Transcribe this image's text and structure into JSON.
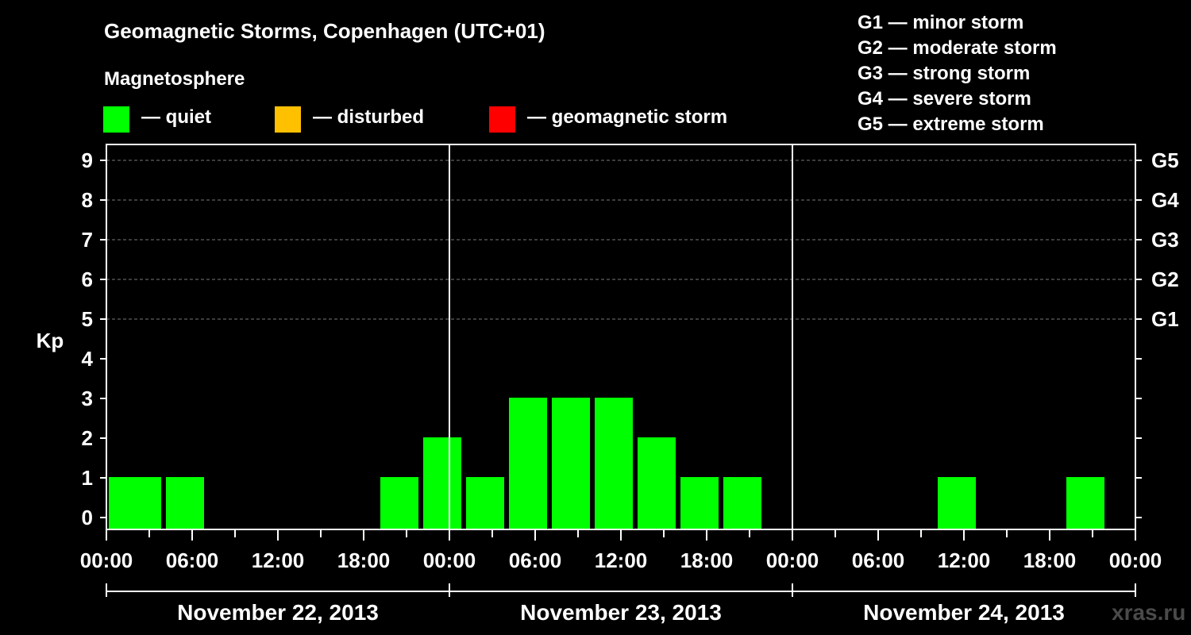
{
  "header": {
    "title": "Geomagnetic Storms, Copenhagen (UTC+01)",
    "subtitle": "Magnetosphere"
  },
  "legend": [
    {
      "label": "— quiet",
      "color": "#00ff00"
    },
    {
      "label": "— disturbed",
      "color": "#ffc000"
    },
    {
      "label": "— geomagnetic storm",
      "color": "#ff0000"
    }
  ],
  "storm_levels": [
    "G1 — minor storm",
    "G2 — moderate storm",
    "G3 — strong storm",
    "G4 — severe storm",
    "G5 — extreme storm"
  ],
  "watermark": "xras.ru",
  "chart_data": {
    "type": "bar",
    "ylabel": "Kp",
    "ylim": [
      0,
      9
    ],
    "y_ticks": [
      "0",
      "1",
      "2",
      "3",
      "4",
      "5",
      "6",
      "7",
      "8",
      "9"
    ],
    "right_axis_labels": [
      {
        "kp": 5,
        "label": "G1"
      },
      {
        "kp": 6,
        "label": "G2"
      },
      {
        "kp": 7,
        "label": "G3"
      },
      {
        "kp": 8,
        "label": "G4"
      },
      {
        "kp": 9,
        "label": "G5"
      }
    ],
    "x_tick_labels": [
      "00:00",
      "06:00",
      "12:00",
      "18:00",
      "00:00",
      "06:00",
      "12:00",
      "18:00",
      "00:00",
      "06:00",
      "12:00",
      "18:00",
      "00:00"
    ],
    "day_labels": [
      "November 22, 2013",
      "November 23, 2013",
      "November 24, 2013"
    ],
    "bar_hours": 3,
    "series": [
      {
        "name": "Kp",
        "color": "#00ff00",
        "bars": [
          {
            "start_hour": 0,
            "value": 1
          },
          {
            "start_hour": 1,
            "value": 1
          },
          {
            "start_hour": 4,
            "value": 1
          },
          {
            "start_hour": 19,
            "value": 1
          },
          {
            "start_hour": 22,
            "value": 2
          },
          {
            "start_hour": 25,
            "value": 1
          },
          {
            "start_hour": 28,
            "value": 3
          },
          {
            "start_hour": 31,
            "value": 3
          },
          {
            "start_hour": 34,
            "value": 3
          },
          {
            "start_hour": 37,
            "value": 2
          },
          {
            "start_hour": 40,
            "value": 1
          },
          {
            "start_hour": 43,
            "value": 1
          },
          {
            "start_hour": 58,
            "value": 1
          },
          {
            "start_hour": 67,
            "value": 1
          }
        ]
      }
    ]
  }
}
